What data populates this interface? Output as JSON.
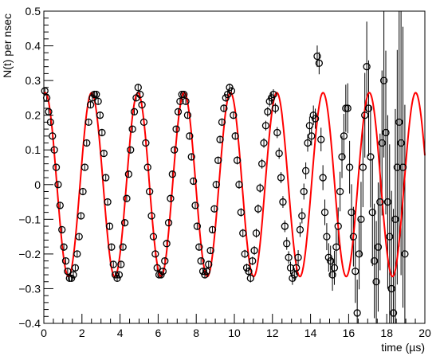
{
  "chart_data": {
    "type": "scatter",
    "title": "",
    "xlabel": "time (µs)",
    "ylabel": "N(t) per nsec",
    "xlim": [
      0,
      20
    ],
    "ylim": [
      -0.4,
      0.5
    ],
    "x_ticks": [
      0,
      2,
      4,
      6,
      8,
      10,
      12,
      14,
      16,
      18,
      20
    ],
    "y_ticks": [
      -0.4,
      -0.3,
      -0.2,
      -0.1,
      0,
      0.1,
      0.2,
      0.3,
      0.4,
      0.5
    ],
    "x_tick_labels": [
      "0",
      "2",
      "4",
      "6",
      "8",
      "10",
      "12",
      "14",
      "16",
      "18",
      "20"
    ],
    "y_tick_labels": [
      "−0.4",
      "−0.3",
      "−0.2",
      "−0.1",
      "0",
      "0.1",
      "0.2",
      "0.3",
      "0.4",
      "0.5"
    ],
    "grid": false,
    "legend": "none",
    "colors": {
      "data": "#000000",
      "fit": "#ff0000",
      "frame": "#000000"
    },
    "data_points": [
      [
        0.05,
        0.27,
        0.008
      ],
      [
        0.15,
        0.25,
        0.008
      ],
      [
        0.25,
        0.21,
        0.008
      ],
      [
        0.35,
        0.18,
        0.008
      ],
      [
        0.45,
        0.14,
        0.008
      ],
      [
        0.55,
        0.1,
        0.008
      ],
      [
        0.65,
        0.05,
        0.008
      ],
      [
        0.75,
        0.0,
        0.008
      ],
      [
        0.85,
        -0.06,
        0.008
      ],
      [
        0.95,
        -0.13,
        0.008
      ],
      [
        1.05,
        -0.18,
        0.008
      ],
      [
        1.15,
        -0.22,
        0.008
      ],
      [
        1.25,
        -0.25,
        0.008
      ],
      [
        1.35,
        -0.27,
        0.008
      ],
      [
        1.45,
        -0.27,
        0.008
      ],
      [
        1.55,
        -0.26,
        0.009
      ],
      [
        1.65,
        -0.24,
        0.009
      ],
      [
        1.75,
        -0.2,
        0.009
      ],
      [
        1.85,
        -0.15,
        0.009
      ],
      [
        1.95,
        -0.09,
        0.009
      ],
      [
        2.05,
        -0.02,
        0.009
      ],
      [
        2.15,
        0.05,
        0.009
      ],
      [
        2.25,
        0.12,
        0.009
      ],
      [
        2.35,
        0.18,
        0.009
      ],
      [
        2.45,
        0.23,
        0.009
      ],
      [
        2.55,
        0.25,
        0.009
      ],
      [
        2.65,
        0.26,
        0.009
      ],
      [
        2.75,
        0.26,
        0.009
      ],
      [
        2.85,
        0.24,
        0.009
      ],
      [
        2.95,
        0.2,
        0.009
      ],
      [
        3.05,
        0.15,
        0.009
      ],
      [
        3.15,
        0.09,
        0.009
      ],
      [
        3.25,
        0.02,
        0.009
      ],
      [
        3.35,
        -0.05,
        0.009
      ],
      [
        3.45,
        -0.12,
        0.009
      ],
      [
        3.55,
        -0.18,
        0.009
      ],
      [
        3.65,
        -0.23,
        0.009
      ],
      [
        3.75,
        -0.26,
        0.009
      ],
      [
        3.85,
        -0.27,
        0.009
      ],
      [
        3.95,
        -0.26,
        0.009
      ],
      [
        4.05,
        -0.23,
        0.009
      ],
      [
        4.15,
        -0.18,
        0.009
      ],
      [
        4.25,
        -0.11,
        0.009
      ],
      [
        4.35,
        -0.04,
        0.009
      ],
      [
        4.45,
        0.03,
        0.009
      ],
      [
        4.55,
        0.1,
        0.009
      ],
      [
        4.65,
        0.16,
        0.009
      ],
      [
        4.75,
        0.21,
        0.009
      ],
      [
        4.85,
        0.25,
        0.009
      ],
      [
        4.95,
        0.28,
        0.009
      ],
      [
        5.05,
        0.26,
        0.009
      ],
      [
        5.15,
        0.23,
        0.009
      ],
      [
        5.25,
        0.18,
        0.009
      ],
      [
        5.35,
        0.12,
        0.009
      ],
      [
        5.45,
        0.05,
        0.009
      ],
      [
        5.55,
        -0.02,
        0.009
      ],
      [
        5.65,
        -0.09,
        0.009
      ],
      [
        5.75,
        -0.15,
        0.009
      ],
      [
        5.85,
        -0.2,
        0.009
      ],
      [
        5.95,
        -0.24,
        0.009
      ],
      [
        6.05,
        -0.26,
        0.01
      ],
      [
        6.15,
        -0.26,
        0.01
      ],
      [
        6.25,
        -0.25,
        0.01
      ],
      [
        6.35,
        -0.22,
        0.01
      ],
      [
        6.45,
        -0.17,
        0.01
      ],
      [
        6.55,
        -0.11,
        0.01
      ],
      [
        6.65,
        -0.04,
        0.01
      ],
      [
        6.75,
        0.03,
        0.01
      ],
      [
        6.85,
        0.1,
        0.01
      ],
      [
        6.95,
        0.16,
        0.01
      ],
      [
        7.05,
        0.21,
        0.01
      ],
      [
        7.15,
        0.24,
        0.01
      ],
      [
        7.25,
        0.26,
        0.01
      ],
      [
        7.35,
        0.26,
        0.01
      ],
      [
        7.45,
        0.24,
        0.01
      ],
      [
        7.55,
        0.2,
        0.01
      ],
      [
        7.65,
        0.14,
        0.01
      ],
      [
        7.75,
        0.08,
        0.01
      ],
      [
        7.85,
        0.01,
        0.01
      ],
      [
        7.95,
        -0.06,
        0.01
      ],
      [
        8.05,
        -0.12,
        0.01
      ],
      [
        8.15,
        -0.18,
        0.01
      ],
      [
        8.25,
        -0.22,
        0.01
      ],
      [
        8.35,
        -0.25,
        0.01
      ],
      [
        8.45,
        -0.26,
        0.01
      ],
      [
        8.55,
        -0.25,
        0.01
      ],
      [
        8.65,
        -0.23,
        0.01
      ],
      [
        8.75,
        -0.19,
        0.01
      ],
      [
        8.85,
        -0.13,
        0.01
      ],
      [
        8.95,
        -0.07,
        0.01
      ],
      [
        9.05,
        0.0,
        0.011
      ],
      [
        9.15,
        0.07,
        0.011
      ],
      [
        9.25,
        0.13,
        0.011
      ],
      [
        9.35,
        0.18,
        0.011
      ],
      [
        9.45,
        0.22,
        0.011
      ],
      [
        9.55,
        0.25,
        0.011
      ],
      [
        9.65,
        0.26,
        0.011
      ],
      [
        9.75,
        0.28,
        0.011
      ],
      [
        9.85,
        0.27,
        0.011
      ],
      [
        9.95,
        0.2,
        0.011
      ],
      [
        10.05,
        0.14,
        0.011
      ],
      [
        10.15,
        0.07,
        0.012
      ],
      [
        10.25,
        0.0,
        0.012
      ],
      [
        10.35,
        -0.08,
        0.012
      ],
      [
        10.45,
        -0.14,
        0.012
      ],
      [
        10.55,
        -0.2,
        0.012
      ],
      [
        10.65,
        -0.24,
        0.012
      ],
      [
        10.75,
        -0.25,
        0.012
      ],
      [
        10.85,
        -0.27,
        0.012
      ],
      [
        10.95,
        -0.22,
        0.012
      ],
      [
        11.05,
        -0.19,
        0.013
      ],
      [
        11.15,
        -0.14,
        0.013
      ],
      [
        11.25,
        -0.07,
        0.013
      ],
      [
        11.35,
        -0.01,
        0.013
      ],
      [
        11.45,
        0.06,
        0.014
      ],
      [
        11.55,
        0.12,
        0.014
      ],
      [
        11.65,
        0.17,
        0.014
      ],
      [
        11.75,
        0.21,
        0.014
      ],
      [
        11.85,
        0.24,
        0.015
      ],
      [
        11.95,
        0.25,
        0.015
      ],
      [
        12.05,
        0.26,
        0.015
      ],
      [
        12.15,
        0.22,
        0.015
      ],
      [
        12.25,
        0.15,
        0.016
      ],
      [
        12.35,
        0.09,
        0.016
      ],
      [
        12.45,
        0.02,
        0.016
      ],
      [
        12.55,
        -0.05,
        0.017
      ],
      [
        12.65,
        -0.12,
        0.017
      ],
      [
        12.75,
        -0.17,
        0.018
      ],
      [
        12.85,
        -0.21,
        0.018
      ],
      [
        12.95,
        -0.24,
        0.018
      ],
      [
        13.05,
        -0.27,
        0.019
      ],
      [
        13.15,
        -0.26,
        0.019
      ],
      [
        13.25,
        -0.24,
        0.02
      ],
      [
        13.35,
        -0.21,
        0.021
      ],
      [
        13.45,
        -0.13,
        0.021
      ],
      [
        13.55,
        -0.09,
        0.022
      ],
      [
        13.65,
        -0.02,
        0.023
      ],
      [
        13.75,
        0.04,
        0.024
      ],
      [
        13.85,
        0.12,
        0.025
      ],
      [
        13.95,
        0.17,
        0.026
      ],
      [
        14.05,
        0.14,
        0.027
      ],
      [
        14.15,
        0.2,
        0.028
      ],
      [
        14.25,
        0.19,
        0.029
      ],
      [
        14.35,
        0.37,
        0.031
      ],
      [
        14.45,
        0.35,
        0.032
      ],
      [
        14.55,
        0.13,
        0.034
      ],
      [
        14.65,
        0.02,
        0.036
      ],
      [
        14.75,
        -0.08,
        0.037
      ],
      [
        14.85,
        -0.15,
        0.039
      ],
      [
        14.95,
        -0.21,
        0.041
      ],
      [
        15.05,
        -0.22,
        0.044
      ],
      [
        15.15,
        -0.26,
        0.046
      ],
      [
        15.25,
        -0.24,
        0.049
      ],
      [
        15.35,
        -0.18,
        0.051
      ],
      [
        15.45,
        -0.12,
        0.054
      ],
      [
        15.55,
        -0.02,
        0.057
      ],
      [
        15.65,
        0.08,
        0.061
      ],
      [
        15.75,
        0.14,
        0.064
      ],
      [
        15.85,
        0.22,
        0.068
      ],
      [
        15.95,
        0.22,
        0.072
      ],
      [
        16.05,
        0.05,
        0.076
      ],
      [
        16.15,
        -0.08,
        0.081
      ],
      [
        16.25,
        -0.15,
        0.086
      ],
      [
        16.35,
        -0.25,
        0.091
      ],
      [
        16.45,
        -0.37,
        0.096
      ],
      [
        16.55,
        -0.2,
        0.102
      ],
      [
        16.65,
        -0.1,
        0.108
      ],
      [
        16.75,
        0.05,
        0.115
      ],
      [
        16.85,
        0.2,
        0.122
      ],
      [
        16.95,
        0.34,
        0.13
      ],
      [
        17.05,
        0.22,
        0.138
      ],
      [
        17.15,
        0.08,
        0.146
      ],
      [
        17.25,
        -0.08,
        0.155
      ],
      [
        17.35,
        -0.22,
        0.165
      ],
      [
        17.45,
        -0.28,
        0.175
      ],
      [
        17.55,
        -0.18,
        0.186
      ],
      [
        17.65,
        -0.05,
        0.197
      ],
      [
        17.75,
        0.12,
        0.209
      ],
      [
        17.85,
        0.3,
        0.222
      ],
      [
        17.95,
        0.15,
        0.236
      ],
      [
        18.05,
        -0.05,
        0.25
      ],
      [
        18.15,
        -0.15,
        0.266
      ],
      [
        18.25,
        -0.3,
        0.282
      ],
      [
        18.35,
        -0.37,
        0.3
      ],
      [
        18.45,
        -0.1,
        0.318
      ],
      [
        18.55,
        0.05,
        0.338
      ],
      [
        18.65,
        0.18,
        0.359
      ],
      [
        18.75,
        0.12,
        0.381
      ],
      [
        18.85,
        0.05,
        0.405
      ],
      [
        18.95,
        -0.2,
        0.43
      ]
    ],
    "fit_curve": {
      "label": "",
      "amplitude": 0.265,
      "amplitude_growth_per_us": 0.0,
      "period_us": 2.43,
      "phase_offset_rad": 0.2,
      "x_range": [
        0,
        20
      ]
    }
  }
}
